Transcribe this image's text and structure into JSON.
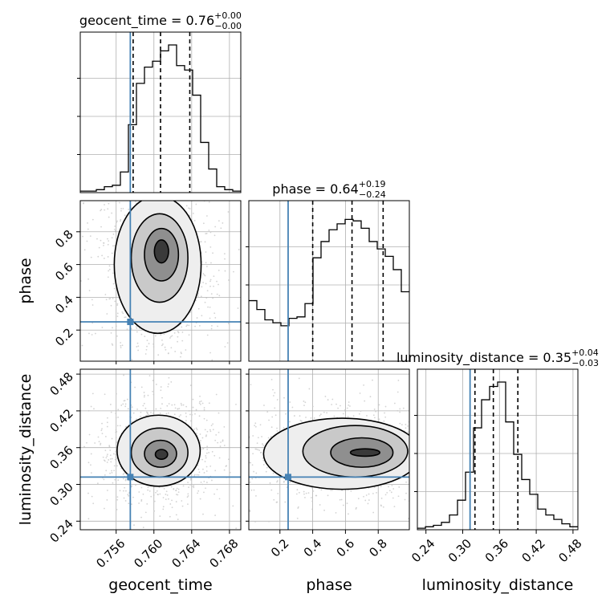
{
  "chart_data": {
    "type": "corner",
    "parameters": [
      "geocent_time",
      "phase",
      "luminosity_distance"
    ],
    "truths": {
      "geocent_time": 0.7575,
      "phase": 0.25,
      "luminosity_distance": 0.312
    },
    "ranges": {
      "geocent_time": [
        0.7522,
        0.7692
      ],
      "phase": [
        0.01,
        0.99
      ],
      "luminosity_distance": [
        0.226,
        0.488
      ]
    },
    "ticks": {
      "geocent_time": [
        "0.756",
        "0.760",
        "0.764",
        "0.768"
      ],
      "phase": [
        "0.2",
        "0.4",
        "0.6",
        "0.8"
      ],
      "luminosity_distance": [
        "0.24",
        "0.30",
        "0.36",
        "0.42",
        "0.48"
      ]
    },
    "titles": [
      {
        "param": "geocent_time",
        "text": "geocent_time = 0.76",
        "plus": "+0.00",
        "minus": "−0.00",
        "quantiles": [
          0.7578,
          0.7607,
          0.7638
        ]
      },
      {
        "param": "phase",
        "text": "phase = 0.64",
        "plus": "+0.19",
        "minus": "−0.24",
        "quantiles": [
          0.4,
          0.64,
          0.83
        ]
      },
      {
        "param": "luminosity_distance",
        "text": "luminosity_distance = 0.35",
        "plus": "+0.04",
        "minus": "−0.03",
        "quantiles": [
          0.32,
          0.35,
          0.39
        ]
      }
    ],
    "histograms": {
      "geocent_time": [
        0.01,
        0.01,
        0.02,
        0.04,
        0.05,
        0.14,
        0.46,
        0.74,
        0.85,
        0.89,
        0.96,
        1.0,
        0.86,
        0.83,
        0.66,
        0.34,
        0.16,
        0.04,
        0.02,
        0.01
      ],
      "phase": [
        0.41,
        0.35,
        0.28,
        0.26,
        0.24,
        0.29,
        0.3,
        0.39,
        0.7,
        0.81,
        0.89,
        0.93,
        0.96,
        0.95,
        0.9,
        0.81,
        0.76,
        0.71,
        0.62,
        0.47
      ],
      "luminosity_distance": [
        0.01,
        0.02,
        0.03,
        0.05,
        0.1,
        0.2,
        0.39,
        0.69,
        0.88,
        0.97,
        1.0,
        0.73,
        0.51,
        0.34,
        0.24,
        0.14,
        0.1,
        0.07,
        0.04,
        0.02
      ]
    },
    "contours": {
      "phase_vs_geocent_time": [
        {
          "cx": 0.7608,
          "cy": 0.68,
          "rx": 0.00075,
          "ry": 0.07
        },
        {
          "cx": 0.7608,
          "cy": 0.66,
          "rx": 0.0018,
          "ry": 0.16
        },
        {
          "cx": 0.7606,
          "cy": 0.64,
          "rx": 0.003,
          "ry": 0.27
        },
        {
          "cx": 0.7604,
          "cy": 0.6,
          "rx": 0.0046,
          "ry": 0.42
        }
      ],
      "luminosity_distance_vs_geocent_time": [
        {
          "cx": 0.7608,
          "cy": 0.349,
          "rx": 0.00065,
          "ry": 0.008
        },
        {
          "cx": 0.7607,
          "cy": 0.35,
          "rx": 0.0017,
          "ry": 0.022
        },
        {
          "cx": 0.7606,
          "cy": 0.352,
          "rx": 0.003,
          "ry": 0.04
        },
        {
          "cx": 0.7605,
          "cy": 0.355,
          "rx": 0.0044,
          "ry": 0.058
        }
      ],
      "luminosity_distance_vs_phase": [
        {
          "cx": 0.72,
          "cy": 0.352,
          "rx": 0.09,
          "ry": 0.006
        },
        {
          "cx": 0.7,
          "cy": 0.352,
          "rx": 0.19,
          "ry": 0.024
        },
        {
          "cx": 0.66,
          "cy": 0.354,
          "rx": 0.32,
          "ry": 0.042
        },
        {
          "cx": 0.58,
          "cy": 0.35,
          "rx": 0.48,
          "ry": 0.058
        }
      ]
    },
    "colors": {
      "truth": "#4682b4",
      "line": "#000000",
      "grid": "#b0b0b0",
      "points": "#c8c8c8"
    }
  }
}
